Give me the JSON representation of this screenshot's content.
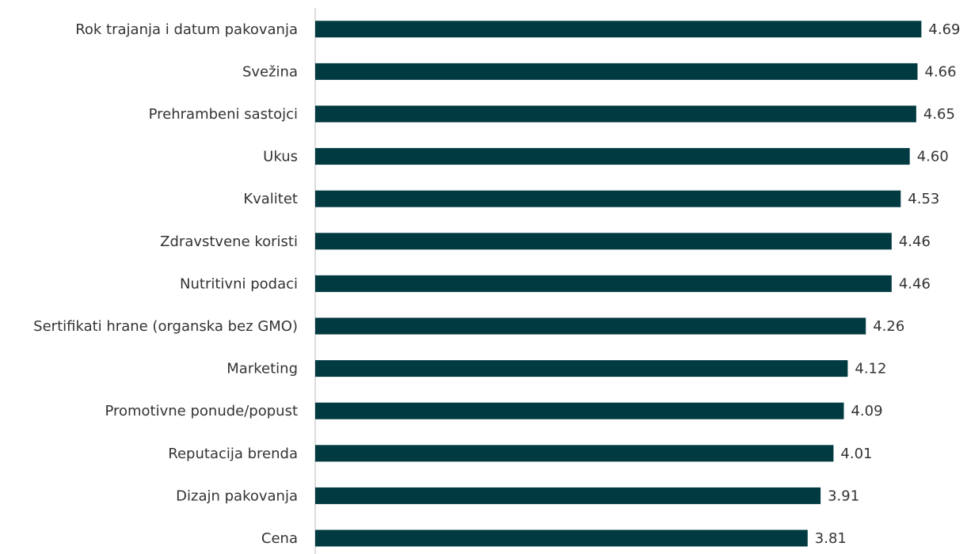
{
  "chart_data": {
    "type": "bar",
    "orientation": "horizontal",
    "categories": [
      "Rok trajanja i datum pakovanja",
      "Svežina",
      "Prehrambeni sastojci",
      "Ukus",
      "Kvalitet",
      "Zdravstvene koristi",
      "Nutritivni podaci",
      "Sertifikati hrane (organska bez GMO)",
      "Marketing",
      "Promotivne ponude/popust",
      "Reputacija brenda",
      "Dizajn pakovanja",
      "Cena"
    ],
    "values": [
      4.69,
      4.66,
      4.65,
      4.6,
      4.53,
      4.46,
      4.46,
      4.26,
      4.12,
      4.09,
      4.01,
      3.91,
      3.81
    ],
    "value_labels": [
      "4.69",
      "4.66",
      "4.65",
      "4.60",
      "4.53",
      "4.46",
      "4.46",
      "4.26",
      "4.12",
      "4.09",
      "4.01",
      "3.91",
      "3.81"
    ],
    "color": "#023a41",
    "xlim": [
      0,
      5
    ]
  }
}
